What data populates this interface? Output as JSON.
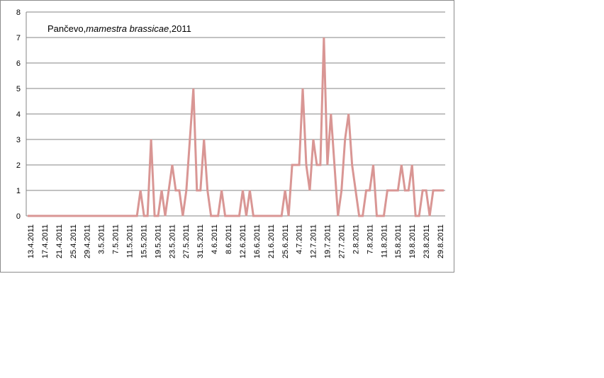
{
  "chart_data": {
    "type": "line",
    "title": {
      "location": "Pančevo,",
      "species": "mamestra brassicae",
      "year": ",2011"
    },
    "xlabel": "",
    "ylabel": "",
    "ylim": [
      0,
      8
    ],
    "yticks": [
      "0",
      "1",
      "2",
      "3",
      "4",
      "5",
      "6",
      "7",
      "8"
    ],
    "grid": true,
    "legend": "none",
    "line_color": "#d99694",
    "x_tick_labels": [
      "13.4.2011",
      "17.4.2011",
      "21.4.2011",
      "25.4.2011",
      "29.4.2011",
      "3.5.2011",
      "7.5.2011",
      "11.5.2011",
      "15.5.2011",
      "19.5.2011",
      "23.5.2011",
      "27.5.2011",
      "31.5.2011",
      "4.6.2011",
      "8.6.2011",
      "12.6.2011",
      "16.6.2011",
      "21.6.2011",
      "25.6.2011",
      "4.7.2011",
      "12.7.2011",
      "19.7.2011",
      "27.7.2011",
      "2.8.2011",
      "7.8.2011",
      "11.8.2011",
      "15.8.2011",
      "19.8.2011",
      "23.8.2011",
      "29.8.2011"
    ],
    "series": [
      {
        "values": [
          0,
          0,
          0,
          0,
          0,
          0,
          0,
          0,
          0,
          0,
          0,
          0,
          0,
          0,
          0,
          0,
          0,
          0,
          0,
          0,
          0,
          0,
          0,
          0,
          0,
          0,
          0,
          0,
          0,
          0,
          0,
          0,
          1,
          0,
          0,
          3,
          0,
          0,
          1,
          0,
          1,
          2,
          1,
          1,
          0,
          1,
          3,
          5,
          1,
          1,
          3,
          1,
          0,
          0,
          0,
          1,
          0,
          0,
          0,
          0,
          0,
          1,
          0,
          1,
          0,
          0,
          0,
          0,
          0,
          0,
          0,
          0,
          0,
          1,
          0,
          2,
          2,
          2,
          5,
          2,
          1,
          3,
          2,
          2,
          7,
          2,
          4,
          2,
          0,
          1,
          3,
          4,
          2,
          1,
          0,
          0,
          1,
          1,
          2,
          0,
          0,
          0,
          1,
          1,
          1,
          1,
          2,
          1,
          1,
          2,
          0,
          0,
          1,
          1,
          0,
          1,
          1,
          1,
          1
        ]
      }
    ]
  }
}
